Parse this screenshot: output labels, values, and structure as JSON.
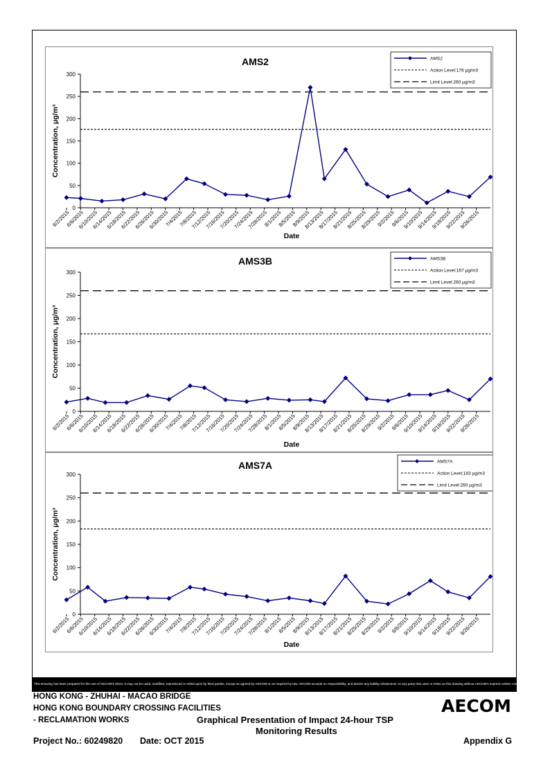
{
  "chart_data": [
    {
      "type": "line",
      "title": "AMS2",
      "xlabel": "Date",
      "ylabel": "Concentration, μg/m³",
      "ylim": [
        0,
        300
      ],
      "yticks": [
        "0",
        "50",
        "100",
        "150",
        "200",
        "250",
        "300"
      ],
      "categories": [
        "6/2/2015",
        "6/6/2015",
        "6/10/2015",
        "6/14/2015",
        "6/18/2015",
        "6/22/2015",
        "6/26/2015",
        "6/30/2015",
        "7/4/2015",
        "7/8/2015",
        "7/12/2015",
        "7/16/2015",
        "7/20/2015",
        "7/24/2015",
        "7/28/2015",
        "8/1/2015",
        "8/5/2015",
        "8/9/2015",
        "8/13/2015",
        "8/17/2015",
        "8/21/2015",
        "8/25/2015",
        "8/29/2015",
        "9/2/2015",
        "9/6/2015",
        "9/10/2015",
        "9/14/2015",
        "9/18/2015",
        "9/22/2015",
        "9/26/2015"
      ],
      "series": [
        {
          "name": "AMS2",
          "color": "#000080",
          "points": [
            [
              "6/2/2015",
              23
            ],
            [
              "6/6/2015",
              21
            ],
            [
              "6/12/2015",
              15
            ],
            [
              "6/18/2015",
              18
            ],
            [
              "6/24/2015",
              31
            ],
            [
              "6/30/2015",
              20
            ],
            [
              "7/6/2015",
              65
            ],
            [
              "7/11/2015",
              54
            ],
            [
              "7/17/2015",
              30
            ],
            [
              "7/23/2015",
              28
            ],
            [
              "7/29/2015",
              18
            ],
            [
              "8/4/2015",
              26
            ],
            [
              "8/10/2015",
              270
            ],
            [
              "8/14/2015",
              65
            ],
            [
              "8/20/2015",
              131
            ],
            [
              "8/26/2015",
              53
            ],
            [
              "9/1/2015",
              25
            ],
            [
              "9/7/2015",
              40
            ],
            [
              "9/12/2015",
              11
            ],
            [
              "9/18/2015",
              37
            ],
            [
              "9/24/2015",
              25
            ],
            [
              "9/30/2015",
              69
            ]
          ]
        }
      ],
      "action_level": 176,
      "limit_level": 260,
      "legend": {
        "series": "AMS2",
        "action": "Action Level:176 μg/m3",
        "limit": "Limit Level:260 μg/m3"
      }
    },
    {
      "type": "line",
      "title": "AMS3B",
      "xlabel": "Date",
      "ylabel": "Concentration, μg/m³",
      "ylim": [
        0,
        300
      ],
      "yticks": [
        "0",
        "50",
        "100",
        "150",
        "200",
        "250",
        "300"
      ],
      "categories": [
        "6/2/2015",
        "6/6/2015",
        "6/10/2015",
        "6/14/2015",
        "6/18/2015",
        "6/22/2015",
        "6/26/2015",
        "6/30/2015",
        "7/4/2015",
        "7/8/2015",
        "7/12/2015",
        "7/16/2015",
        "7/20/2015",
        "7/24/2015",
        "7/28/2015",
        "8/1/2015",
        "8/5/2015",
        "8/9/2015",
        "8/13/2015",
        "8/17/2015",
        "8/21/2015",
        "8/25/2015",
        "8/29/2015",
        "9/2/2015",
        "9/6/2015",
        "9/10/2015",
        "9/14/2015",
        "9/18/2015",
        "9/22/2015",
        "9/26/2015"
      ],
      "series": [
        {
          "name": "AMS3B",
          "color": "#000080",
          "points": [
            [
              "6/2/2015",
              20
            ],
            [
              "6/8/2015",
              28
            ],
            [
              "6/13/2015",
              19
            ],
            [
              "6/19/2015",
              19
            ],
            [
              "6/25/2015",
              34
            ],
            [
              "7/1/2015",
              26
            ],
            [
              "7/7/2015",
              55
            ],
            [
              "7/11/2015",
              51
            ],
            [
              "7/17/2015",
              25
            ],
            [
              "7/23/2015",
              21
            ],
            [
              "7/29/2015",
              28
            ],
            [
              "8/4/2015",
              24
            ],
            [
              "8/10/2015",
              25
            ],
            [
              "8/14/2015",
              21
            ],
            [
              "8/20/2015",
              72
            ],
            [
              "8/26/2015",
              27
            ],
            [
              "9/1/2015",
              23
            ],
            [
              "9/7/2015",
              36
            ],
            [
              "9/13/2015",
              36
            ],
            [
              "9/18/2015",
              45
            ],
            [
              "9/24/2015",
              25
            ],
            [
              "9/30/2015",
              70
            ]
          ]
        }
      ],
      "action_level": 167,
      "limit_level": 260,
      "legend": {
        "series": "AMS3B",
        "action": "Action Level:167 μg/m3",
        "limit": "Limit Level:260 μg/m3"
      }
    },
    {
      "type": "line",
      "title": "AMS7A",
      "xlabel": "Date",
      "ylabel": "Concentration, μg/m³",
      "ylim": [
        0,
        300
      ],
      "yticks": [
        "0",
        "50",
        "100",
        "150",
        "200",
        "250",
        "300"
      ],
      "categories": [
        "6/2/2015",
        "6/6/2015",
        "6/10/2015",
        "6/14/2015",
        "6/18/2015",
        "6/22/2015",
        "6/26/2015",
        "6/30/2015",
        "7/4/2015",
        "7/8/2015",
        "7/12/2015",
        "7/16/2015",
        "7/20/2015",
        "7/24/2015",
        "7/28/2015",
        "8/1/2015",
        "8/5/2015",
        "8/9/2015",
        "8/13/2015",
        "8/17/2015",
        "8/21/2015",
        "8/25/2015",
        "8/29/2015",
        "9/2/2015",
        "9/6/2015",
        "9/10/2015",
        "9/14/2015",
        "9/18/2015",
        "9/22/2015",
        "9/26/2015"
      ],
      "series": [
        {
          "name": "AMS7A",
          "color": "#000080",
          "points": [
            [
              "6/2/2015",
              31
            ],
            [
              "6/8/2015",
              58
            ],
            [
              "6/13/2015",
              28
            ],
            [
              "6/19/2015",
              36
            ],
            [
              "6/25/2015",
              35
            ],
            [
              "7/1/2015",
              34
            ],
            [
              "7/7/2015",
              58
            ],
            [
              "7/11/2015",
              54
            ],
            [
              "7/17/2015",
              43
            ],
            [
              "7/23/2015",
              38
            ],
            [
              "7/29/2015",
              29
            ],
            [
              "8/4/2015",
              35
            ],
            [
              "8/10/2015",
              29
            ],
            [
              "8/14/2015",
              23
            ],
            [
              "8/20/2015",
              82
            ],
            [
              "8/26/2015",
              28
            ],
            [
              "9/1/2015",
              22
            ],
            [
              "9/7/2015",
              44
            ],
            [
              "9/13/2015",
              72
            ],
            [
              "9/18/2015",
              48
            ],
            [
              "9/24/2015",
              35
            ],
            [
              "9/30/2015",
              81
            ]
          ]
        }
      ],
      "action_level": 183,
      "limit_level": 260,
      "legend": {
        "series": "AMS7A",
        "action": "Action Level:183 μg/m3",
        "limit": "Limit Level:260 μg/m3"
      }
    }
  ],
  "disclaimer": "This Drawing has been prepared for the use of AECOM's client. It may not be used, modified, reproduced or relied upon by third parties, except as agreed by AECOM or as required by law. AECOM accepts no responsibility, and denies any liability whatsoever, to any party that uses or relies on this drawing without AECOM's express written consent.",
  "footer": {
    "line1": "HONG KONG - ZHUHAI - MACAO BRIDGE",
    "line2": "HONG KONG BOUNDARY CROSSING FACILITIES",
    "line3": "- RECLAMATION WORKS",
    "heading1": "Graphical Presentation of Impact 24-hour TSP",
    "heading2": "Monitoring Results",
    "project": "Project No.: 60249820",
    "date": "Date: OCT 2015",
    "appendix": "Appendix G",
    "logo": "AECOM"
  },
  "colors": {
    "series": "#000080",
    "reference": "#000000",
    "border": "#000000"
  }
}
